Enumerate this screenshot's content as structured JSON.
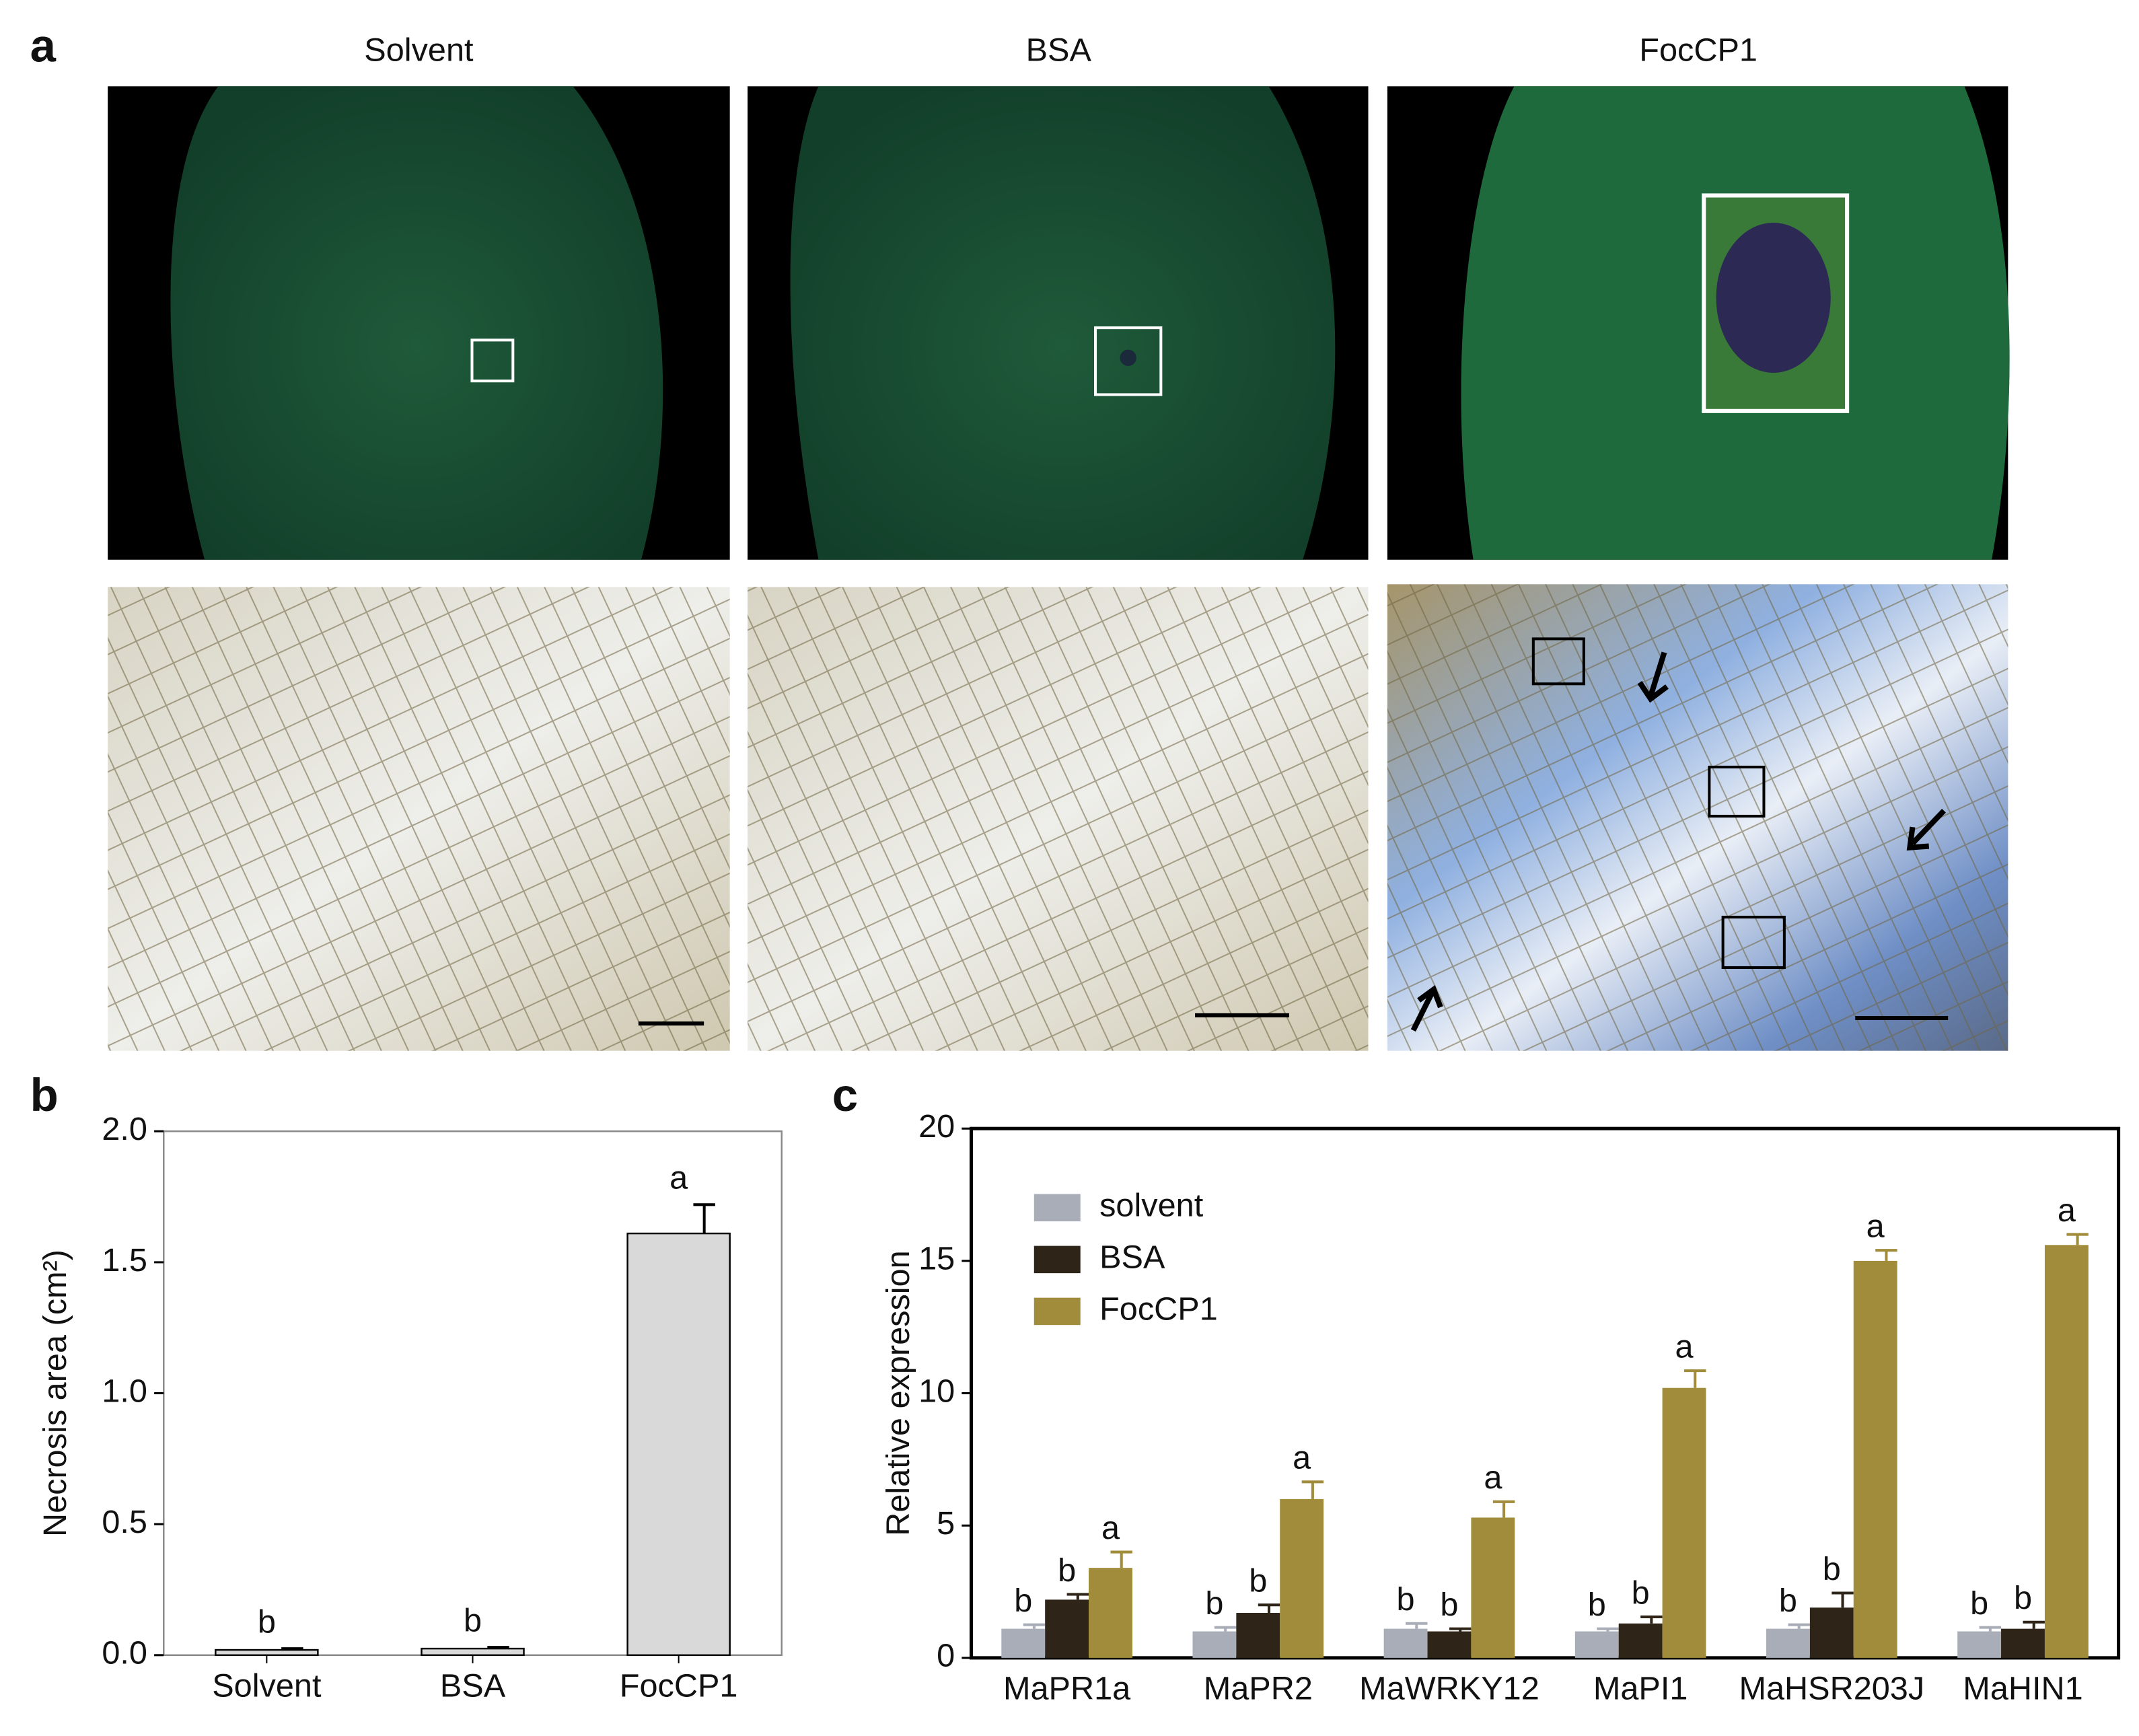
{
  "figure": {
    "panel_labels": [
      "a",
      "b",
      "c"
    ],
    "column_titles": [
      "Solvent",
      "BSA",
      "FocCP1"
    ]
  },
  "chart_data": [
    {
      "type": "bar",
      "categories": [
        "Solvent",
        "BSA",
        "FocCP1"
      ],
      "values": [
        0.02,
        0.025,
        1.61
      ],
      "errors": [
        0.005,
        0.005,
        0.11
      ],
      "labels": [
        "b",
        "b",
        "a"
      ],
      "color": "#d9d9d9",
      "ylabel": "Necrosis area (cm²)",
      "ylim": [
        0,
        2
      ],
      "yticks": [
        {
          "value": 0,
          "label": "0.0"
        },
        {
          "value": 0.5,
          "label": "0.5"
        },
        {
          "value": 1,
          "label": "1.0"
        },
        {
          "value": 1.5,
          "label": "1.5"
        },
        {
          "value": 2,
          "label": "2.0"
        }
      ]
    },
    {
      "type": "grouped_bar",
      "categories": [
        "MaPR1a",
        "MaPR2",
        "MaWRKY12",
        "MaPI1",
        "MaHSR203J",
        "MaHIN1"
      ],
      "series": [
        {
          "name": "solvent",
          "color": "#a9adb8",
          "values": [
            1.1,
            1.0,
            1.1,
            1.0,
            1.1,
            1.0
          ],
          "errors": [
            0.15,
            0.15,
            0.2,
            0.1,
            0.15,
            0.15
          ],
          "labels": [
            "b",
            "b",
            "b",
            "b",
            "b",
            "b"
          ]
        },
        {
          "name": "BSA",
          "color": "#2e2418",
          "values": [
            2.2,
            1.7,
            1.0,
            1.3,
            1.9,
            1.1
          ],
          "errors": [
            0.2,
            0.3,
            0.1,
            0.25,
            0.55,
            0.25
          ],
          "labels": [
            "b",
            "b",
            "b",
            "b",
            "b",
            "b"
          ]
        },
        {
          "name": "FocCP1",
          "color": "#a08c3a",
          "values": [
            3.4,
            6.0,
            5.3,
            10.2,
            15.0,
            15.6
          ],
          "errors": [
            0.6,
            0.65,
            0.6,
            0.65,
            0.4,
            0.4
          ],
          "labels": [
            "a",
            "a",
            "a",
            "a",
            "a",
            "a"
          ]
        }
      ],
      "ylabel": "Relative expression",
      "legend": "upper left",
      "ylim": [
        0,
        20
      ],
      "yticks": [
        0,
        5,
        10,
        15,
        20
      ]
    }
  ]
}
